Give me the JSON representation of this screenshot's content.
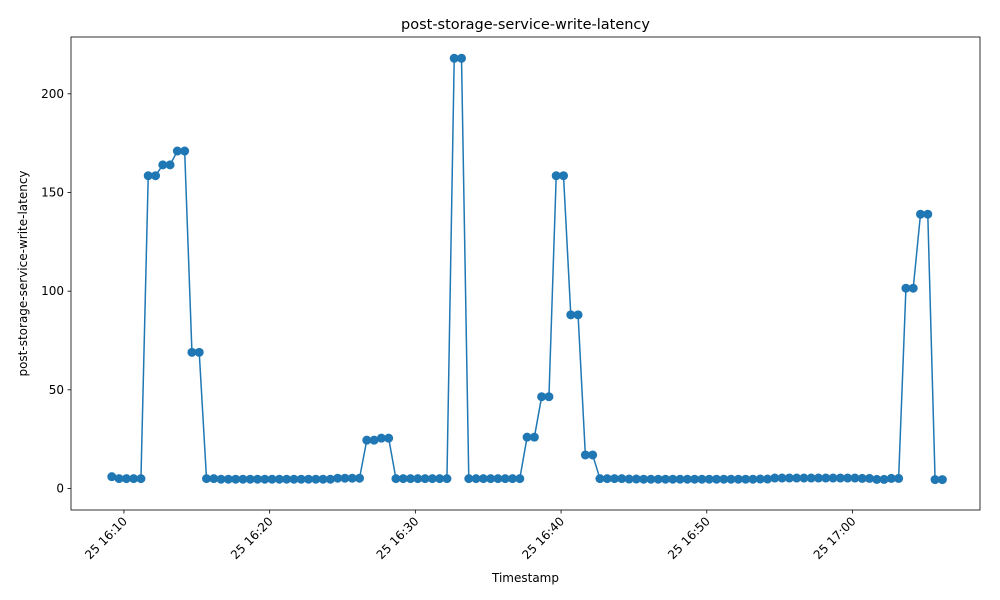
{
  "chart_data": {
    "type": "line",
    "title": "post-storage-service-write-latency",
    "xlabel": "Timestamp",
    "ylabel": "post-storage-service-write-latency",
    "x": [
      "25 16:09:10",
      "25 16:09:40",
      "25 16:10:10",
      "25 16:10:40",
      "25 16:11:10",
      "25 16:11:40",
      "25 16:12:10",
      "25 16:12:40",
      "25 16:13:10",
      "25 16:13:40",
      "25 16:14:10",
      "25 16:14:40",
      "25 16:15:10",
      "25 16:15:40",
      "25 16:16:10",
      "25 16:16:40",
      "25 16:17:10",
      "25 16:17:40",
      "25 16:18:10",
      "25 16:18:40",
      "25 16:19:10",
      "25 16:19:40",
      "25 16:20:10",
      "25 16:20:40",
      "25 16:21:10",
      "25 16:21:40",
      "25 16:22:10",
      "25 16:22:40",
      "25 16:23:10",
      "25 16:23:40",
      "25 16:24:10",
      "25 16:24:40",
      "25 16:25:10",
      "25 16:25:40",
      "25 16:26:10",
      "25 16:26:40",
      "25 16:27:10",
      "25 16:27:40",
      "25 16:28:10",
      "25 16:28:40",
      "25 16:29:10",
      "25 16:29:40",
      "25 16:30:10",
      "25 16:30:40",
      "25 16:31:10",
      "25 16:31:40",
      "25 16:32:10",
      "25 16:32:40",
      "25 16:33:10",
      "25 16:33:40",
      "25 16:34:10",
      "25 16:34:40",
      "25 16:35:10",
      "25 16:35:40",
      "25 16:36:10",
      "25 16:36:40",
      "25 16:37:10",
      "25 16:37:40",
      "25 16:38:10",
      "25 16:38:40",
      "25 16:39:10",
      "25 16:39:40",
      "25 16:40:10",
      "25 16:40:40",
      "25 16:41:10",
      "25 16:41:40",
      "25 16:42:10",
      "25 16:42:40",
      "25 16:43:10",
      "25 16:43:40",
      "25 16:44:10",
      "25 16:44:40",
      "25 16:45:10",
      "25 16:45:40",
      "25 16:46:10",
      "25 16:46:40",
      "25 16:47:10",
      "25 16:47:40",
      "25 16:48:10",
      "25 16:48:40",
      "25 16:49:10",
      "25 16:49:40",
      "25 16:50:10",
      "25 16:50:40",
      "25 16:51:10",
      "25 16:51:40",
      "25 16:52:10",
      "25 16:52:40",
      "25 16:53:10",
      "25 16:53:40",
      "25 16:54:10",
      "25 16:54:40",
      "25 16:55:10",
      "25 16:55:40",
      "25 16:56:10",
      "25 16:56:40",
      "25 16:57:10",
      "25 16:57:40",
      "25 16:58:10",
      "25 16:58:40",
      "25 16:59:10",
      "25 16:59:40",
      "25 17:00:10",
      "25 17:00:40",
      "25 17:01:10",
      "25 17:01:40",
      "25 17:02:10",
      "25 17:02:40",
      "25 17:03:10",
      "25 17:03:40",
      "25 17:04:10",
      "25 17:04:40",
      "25 17:05:10",
      "25 17:05:40",
      "25 17:06:10"
    ],
    "series": [
      {
        "color": "#1f77b4",
        "values": [
          6,
          5,
          5,
          5,
          5,
          158.5,
          158.5,
          164,
          164,
          171,
          171,
          69,
          69,
          5,
          5,
          4.7,
          4.7,
          4.7,
          4.7,
          4.7,
          4.7,
          4.7,
          4.7,
          4.7,
          4.7,
          4.7,
          4.7,
          4.7,
          4.7,
          4.7,
          4.7,
          5.2,
          5.2,
          5.2,
          5.2,
          24.5,
          24.5,
          25.5,
          25.5,
          5,
          5,
          5,
          5,
          5,
          5,
          5,
          5,
          218,
          218,
          5,
          5,
          5,
          5,
          5,
          5,
          5,
          5,
          26,
          26,
          46.5,
          46.5,
          158.5,
          158.5,
          88,
          88,
          17,
          17,
          5,
          5,
          5,
          5,
          4.8,
          4.8,
          4.7,
          4.7,
          4.7,
          4.7,
          4.7,
          4.7,
          4.7,
          4.7,
          4.7,
          4.7,
          4.7,
          4.7,
          4.7,
          4.7,
          4.7,
          4.7,
          4.8,
          4.8,
          5.3,
          5.3,
          5.3,
          5.3,
          5.3,
          5.3,
          5.3,
          5.3,
          5.3,
          5.3,
          5.3,
          5.3,
          5.1,
          5.1,
          4.6,
          4.6,
          5.1,
          5.1,
          101.5,
          101.5,
          139,
          139,
          4.5,
          4.5
        ]
      }
    ],
    "xlim": [
      "25 16:06:22",
      "25 17:08:45"
    ],
    "xticks": [
      "25 16:10",
      "25 16:20",
      "25 16:30",
      "25 16:40",
      "25 16:50",
      "25 17:00"
    ],
    "ylim": [
      -10.9,
      228.8
    ],
    "yticks": [
      0,
      50,
      100,
      150,
      200
    ]
  }
}
